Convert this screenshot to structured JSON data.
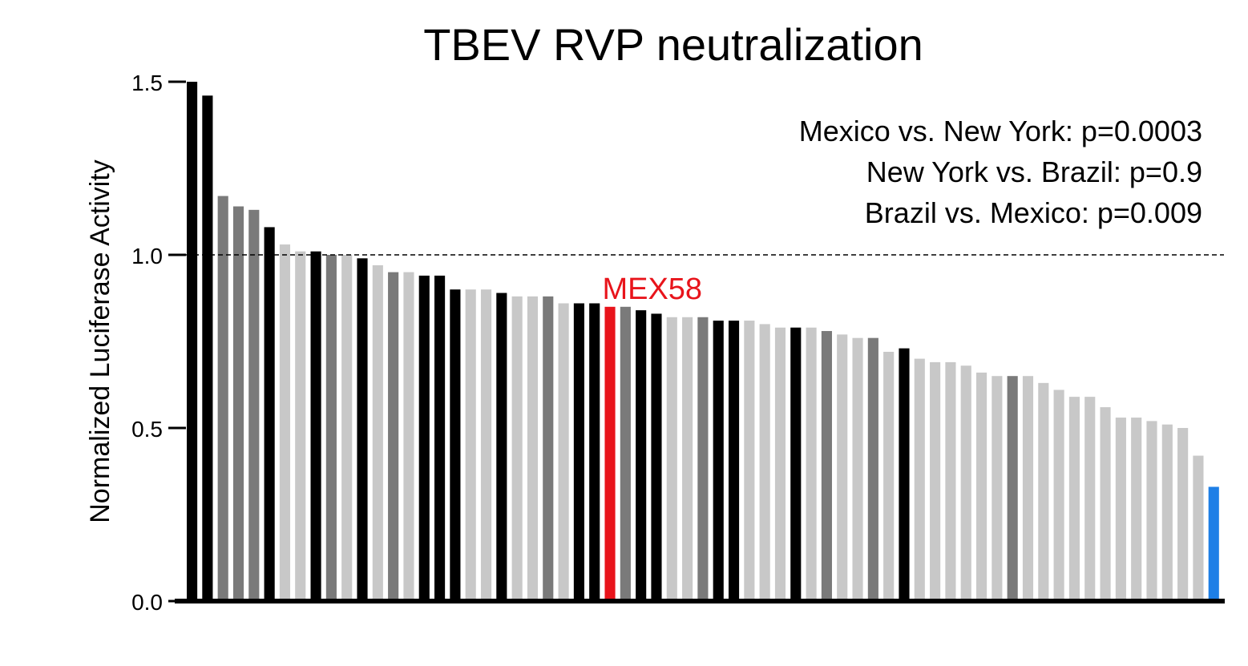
{
  "chart_data": {
    "type": "bar",
    "title": "TBEV RVP neutralization",
    "xlabel": "",
    "ylabel": "Normalized Luciferase Activity",
    "ylim": [
      0,
      1.5
    ],
    "yticks": [
      "0.0",
      "0.5",
      "1.0",
      "1.5"
    ],
    "ytick_values": [
      0.0,
      0.5,
      1.0,
      1.5
    ],
    "reference_line": {
      "value": 1.0,
      "style": "dashed"
    },
    "grid": false,
    "annotations": [
      "Mexico vs. New York: p=0.0003",
      "New York vs. Brazil: p=0.9",
      "Brazil vs. Mexico: p=0.009"
    ],
    "highlight": {
      "label": "MEX58",
      "index": 27,
      "color": "#e8141b"
    },
    "colors": {
      "black": "#000000",
      "dark": "#7a7a7a",
      "light": "#c8c8c8",
      "red": "#e8141b",
      "blue": "#1e7fe6"
    },
    "values": [
      1.5,
      1.46,
      1.17,
      1.14,
      1.13,
      1.08,
      1.03,
      1.01,
      1.01,
      1.0,
      1.0,
      0.99,
      0.97,
      0.95,
      0.95,
      0.94,
      0.94,
      0.9,
      0.9,
      0.9,
      0.89,
      0.88,
      0.88,
      0.88,
      0.86,
      0.86,
      0.86,
      0.85,
      0.85,
      0.84,
      0.83,
      0.82,
      0.82,
      0.82,
      0.81,
      0.81,
      0.81,
      0.8,
      0.79,
      0.79,
      0.79,
      0.78,
      0.77,
      0.76,
      0.76,
      0.72,
      0.73,
      0.7,
      0.69,
      0.69,
      0.68,
      0.66,
      0.65,
      0.65,
      0.65,
      0.63,
      0.61,
      0.59,
      0.59,
      0.56,
      0.53,
      0.53,
      0.52,
      0.51,
      0.5,
      0.42,
      0.33
    ],
    "bar_colors": [
      "black",
      "black",
      "dark",
      "dark",
      "dark",
      "black",
      "light",
      "light",
      "black",
      "dark",
      "light",
      "black",
      "light",
      "dark",
      "light",
      "black",
      "black",
      "black",
      "light",
      "light",
      "black",
      "light",
      "light",
      "dark",
      "light",
      "black",
      "black",
      "red",
      "dark",
      "black",
      "black",
      "light",
      "light",
      "dark",
      "black",
      "black",
      "light",
      "light",
      "light",
      "black",
      "light",
      "dark",
      "light",
      "light",
      "dark",
      "light",
      "black",
      "light",
      "light",
      "light",
      "light",
      "light",
      "light",
      "dark",
      "light",
      "light",
      "light",
      "light",
      "light",
      "light",
      "light",
      "light",
      "light",
      "light",
      "light",
      "light",
      "blue"
    ]
  }
}
